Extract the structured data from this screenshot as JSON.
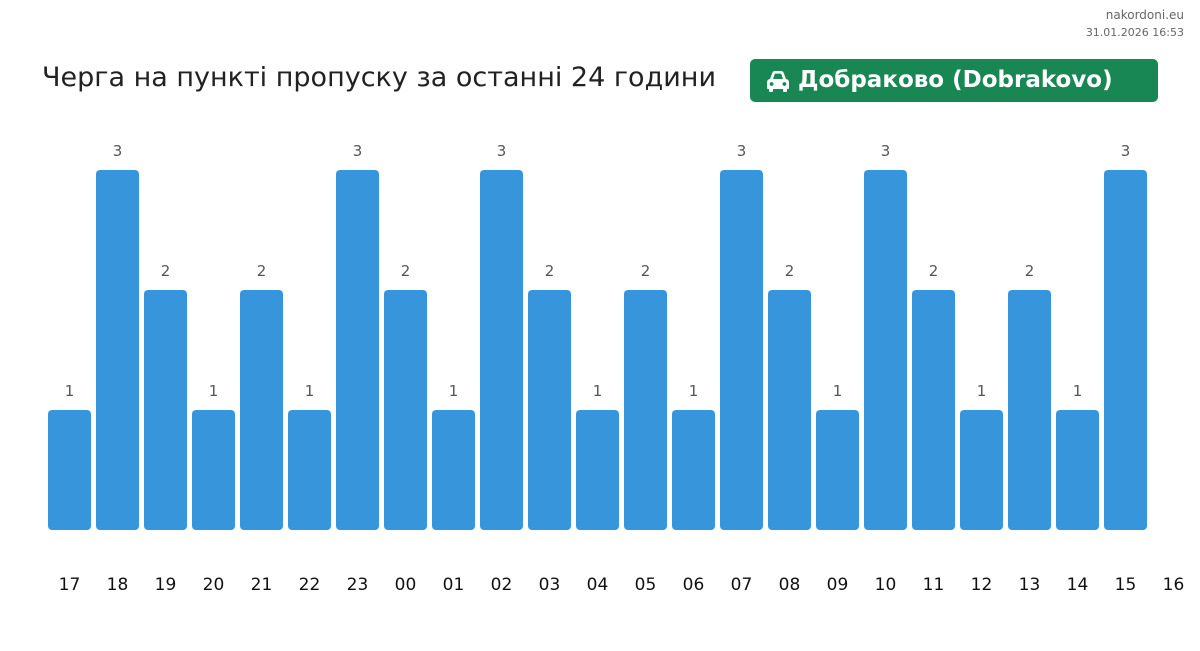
{
  "header": {
    "site": "nakordoni.eu",
    "timestamp": "31.01.2026 16:53",
    "title": "Черга на пункті пропуску за останні 24 години",
    "badge": {
      "icon": "car-icon",
      "label": "Добраково (Dobrakovo)",
      "color": "#198754"
    }
  },
  "chart_data": {
    "type": "bar",
    "title": "Черга на пункті пропуску за останні 24 години",
    "xlabel": "",
    "ylabel": "",
    "categories": [
      "17",
      "18",
      "19",
      "20",
      "21",
      "22",
      "23",
      "00",
      "01",
      "02",
      "03",
      "04",
      "05",
      "06",
      "07",
      "08",
      "09",
      "10",
      "11",
      "12",
      "13",
      "14",
      "15"
    ],
    "x_ticks": [
      "17",
      "18",
      "19",
      "20",
      "21",
      "22",
      "23",
      "00",
      "01",
      "02",
      "03",
      "04",
      "05",
      "06",
      "07",
      "08",
      "09",
      "10",
      "11",
      "12",
      "13",
      "14",
      "15",
      "16"
    ],
    "values": [
      1,
      3,
      2,
      1,
      2,
      1,
      3,
      2,
      1,
      3,
      2,
      1,
      2,
      1,
      3,
      2,
      1,
      3,
      2,
      1,
      2,
      1,
      3
    ],
    "ylim": [
      0,
      3
    ],
    "grid": false,
    "legend": "none",
    "bar_color": "#3796db"
  }
}
